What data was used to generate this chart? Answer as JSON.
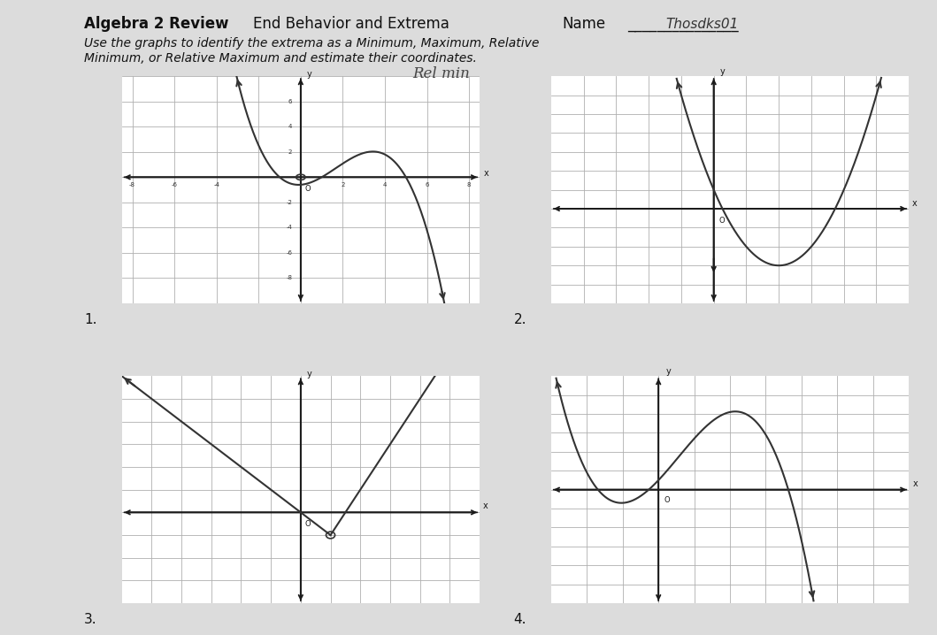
{
  "title_part1": "Algebra 2 Review",
  "title_part2": "End Behavior and Extrema",
  "title_part3": "Name",
  "title_underline": "_______________",
  "instructions_line1": "Use the graphs to identify the extrema as a Minimum, Maximum, Relative",
  "instructions_line2": "Minimum, or Relative Maximum and estimate their coordinates.",
  "annotation1": "Rel min",
  "label1": "1.",
  "label2": "2.",
  "label3": "3.",
  "label4": "4.",
  "paper_color": "#dcdcdc",
  "graph_bg": "#ffffff",
  "grid_color": "#b0b0b0",
  "axis_color": "#1a1a1a",
  "curve_color": "#333333",
  "text_color": "#111111",
  "title_fontsize": 12,
  "instructions_fontsize": 10
}
